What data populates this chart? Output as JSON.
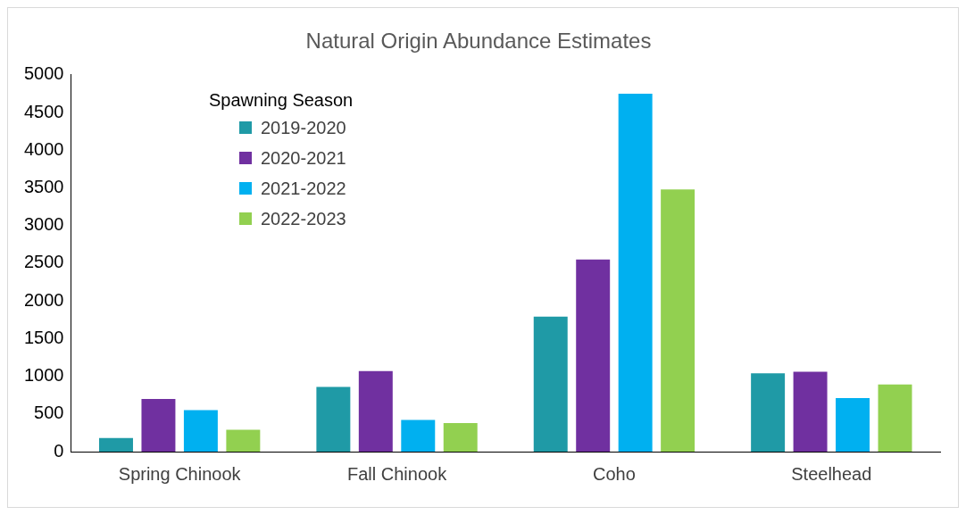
{
  "chart_data": {
    "type": "bar",
    "title": "Natural Origin Abundance Estimates",
    "legend_title": "Spawning Season",
    "categories": [
      "Spring Chinook",
      "Fall Chinook",
      "Coho",
      "Steelhead"
    ],
    "series": [
      {
        "name": "2019-2020",
        "color": "#1f9aa6",
        "values": [
          180,
          860,
          1790,
          1040
        ]
      },
      {
        "name": "2020-2021",
        "color": "#7030a0",
        "values": [
          700,
          1070,
          2550,
          1060
        ]
      },
      {
        "name": "2021-2022",
        "color": "#00b0f0",
        "values": [
          550,
          420,
          4750,
          710
        ]
      },
      {
        "name": "2022-2023",
        "color": "#92d050",
        "values": [
          290,
          380,
          3480,
          890
        ]
      }
    ],
    "ylim": [
      0,
      5000
    ],
    "yticks": [
      0,
      500,
      1000,
      1500,
      2000,
      2500,
      3000,
      3500,
      4000,
      4500,
      5000
    ],
    "grid": false,
    "legend": "top left"
  }
}
